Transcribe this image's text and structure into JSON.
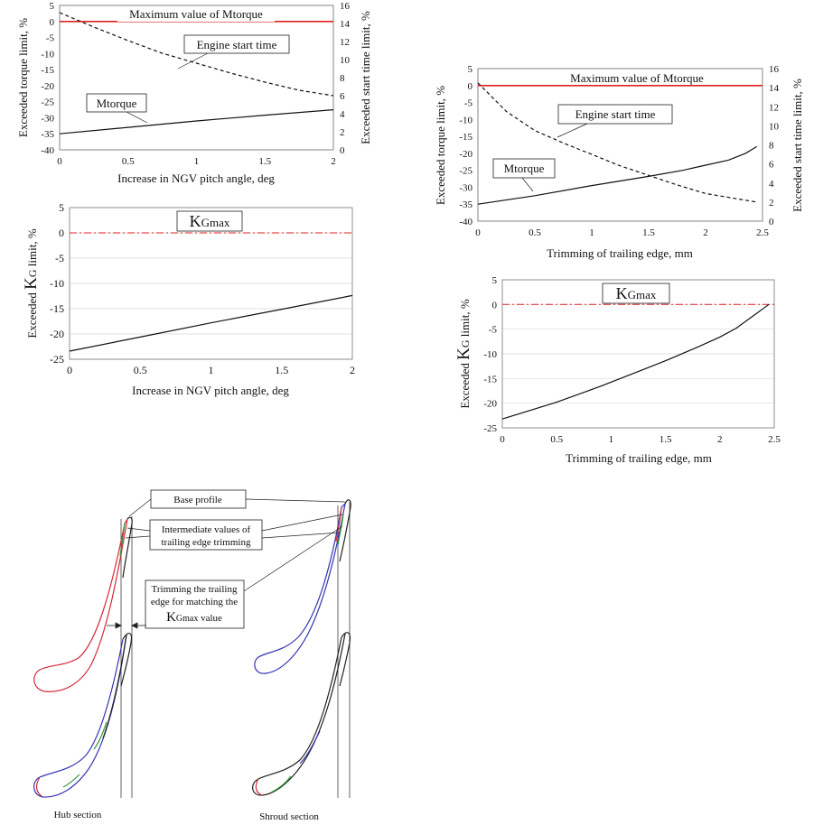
{
  "colors": {
    "limit_line": "#e02020",
    "blade_hub": "#d42a3a",
    "blade_shroud": "#3434b4",
    "blade_base": "#222222",
    "blade_mid_green": "#2e9a3a",
    "text": "#111111",
    "grid": "#d9d9d9"
  },
  "chart_data": [
    {
      "id": "torque_vs_ngv",
      "type": "line",
      "xlabel": "Increase in NGV pitch angle, deg",
      "ylabel": "Exceeded torque limit, %",
      "y2label": "Exceeded start time limit, %",
      "xlim": [
        0,
        2
      ],
      "ylim": [
        -40,
        5
      ],
      "y2lim": [
        0,
        16
      ],
      "xticks": [
        0,
        0.5,
        1,
        1.5,
        2
      ],
      "xtick_labels": [
        "0",
        "0.5",
        "1",
        "1.5",
        "2"
      ],
      "yticks": [
        5,
        0,
        -5,
        -10,
        -15,
        -20,
        -25,
        -30,
        -35,
        -40
      ],
      "ytick_labels": [
        "5",
        "0",
        "-5",
        "-10",
        "-15",
        "-20",
        "-25",
        "-30",
        "-35",
        "-40"
      ],
      "y2ticks": [
        16,
        14,
        12,
        10,
        8,
        6,
        4,
        2,
        0
      ],
      "y2tick_labels": [
        "16",
        "14",
        "12",
        "10",
        "8",
        "6",
        "4",
        "2",
        "0"
      ],
      "grid": false,
      "series": [
        {
          "name": "Maximum value of Mtorque",
          "axis": "left",
          "style": "limit",
          "x": [
            0,
            2
          ],
          "y": [
            0,
            0
          ]
        },
        {
          "name": "Mtorque",
          "axis": "left",
          "style": "solid",
          "x": [
            0,
            0.5,
            1,
            1.5,
            2
          ],
          "y": [
            -35,
            -33,
            -31,
            -29.2,
            -27.5
          ]
        },
        {
          "name": "Engine start time",
          "axis": "right",
          "style": "dashed",
          "x": [
            0,
            0.25,
            0.5,
            0.75,
            1,
            1.25,
            1.5,
            1.75,
            2
          ],
          "y": [
            15.2,
            13.6,
            12.1,
            10.7,
            9.6,
            8.5,
            7.5,
            6.6,
            6.0
          ]
        }
      ]
    },
    {
      "id": "torque_vs_trim",
      "type": "line",
      "xlabel": "Trimming of trailing edge, mm",
      "ylabel": "Exceeded torque limit, %",
      "y2label": "Exceeded start time limit, %",
      "xlim": [
        0,
        2.5
      ],
      "ylim": [
        -40,
        5
      ],
      "y2lim": [
        0,
        16
      ],
      "xticks": [
        0,
        0.5,
        1,
        1.5,
        2,
        2.5
      ],
      "xtick_labels": [
        "0",
        "0.5",
        "1",
        "1.5",
        "2",
        "2.5"
      ],
      "yticks": [
        5,
        0,
        -5,
        -10,
        -15,
        -20,
        -25,
        -30,
        -35,
        -40
      ],
      "ytick_labels": [
        "5",
        "0",
        "-5",
        "-10",
        "-15",
        "-20",
        "-25",
        "-30",
        "-35",
        "-40"
      ],
      "y2ticks": [
        16,
        14,
        12,
        10,
        8,
        6,
        4,
        2,
        0
      ],
      "y2tick_labels": [
        "16",
        "14",
        "12",
        "10",
        "8",
        "6",
        "4",
        "2",
        "0"
      ],
      "grid": false,
      "series": [
        {
          "name": "Maximum value of Mtorque",
          "axis": "left",
          "style": "limit",
          "x": [
            0,
            2.5
          ],
          "y": [
            0,
            0
          ]
        },
        {
          "name": "Mtorque",
          "axis": "left",
          "style": "solid",
          "x": [
            0,
            0.5,
            1,
            1.5,
            1.8,
            2,
            2.2,
            2.35,
            2.45
          ],
          "y": [
            -35,
            -32.5,
            -29.5,
            -26.8,
            -25,
            -23.5,
            -22,
            -20,
            -18
          ]
        },
        {
          "name": "Engine start time",
          "axis": "right",
          "style": "dashed",
          "x": [
            0,
            0.25,
            0.5,
            0.75,
            1,
            1.25,
            1.5,
            1.75,
            2,
            2.25,
            2.45
          ],
          "y": [
            14.5,
            11.5,
            9.5,
            8.2,
            7,
            5.8,
            4.8,
            3.8,
            2.9,
            2.4,
            2.0
          ]
        }
      ]
    },
    {
      "id": "kg_vs_ngv",
      "type": "line",
      "xlabel": "Increase in NGV pitch angle, deg",
      "ylabel_prefix": "Exceeded ",
      "ylabel_big": "K",
      "ylabel_sub": "G",
      "ylabel_suffix": " limit, %",
      "box_label_big": "K",
      "box_label_small": "Gmax",
      "xlim": [
        0,
        2
      ],
      "ylim": [
        -25,
        5
      ],
      "xticks": [
        0,
        0.5,
        1,
        1.5,
        2
      ],
      "xtick_labels": [
        "0",
        "0.5",
        "1",
        "1.5",
        "2"
      ],
      "yticks": [
        5,
        0,
        -5,
        -10,
        -15,
        -20,
        -25
      ],
      "ytick_labels": [
        "5",
        "0",
        "-5",
        "-10",
        "-15",
        "-20",
        "-25"
      ],
      "grid": true,
      "series": [
        {
          "name": "KGmax",
          "style": "dashdot",
          "x": [
            0,
            2
          ],
          "y": [
            0,
            0
          ]
        },
        {
          "name": "KG",
          "style": "solid",
          "x": [
            0,
            0.5,
            1,
            1.5,
            2
          ],
          "y": [
            -23.4,
            -20.6,
            -17.8,
            -15.1,
            -12.4
          ]
        }
      ]
    },
    {
      "id": "kg_vs_trim",
      "type": "line",
      "xlabel": "Trimming of trailing edge, mm",
      "ylabel_prefix": "Exceeded ",
      "ylabel_big": "K",
      "ylabel_sub": "G",
      "ylabel_suffix": " limit, %",
      "box_label_big": "K",
      "box_label_small": "Gmax",
      "xlim": [
        0,
        2.5
      ],
      "ylim": [
        -25,
        5
      ],
      "xticks": [
        0,
        0.5,
        1,
        1.5,
        2,
        2.5
      ],
      "xtick_labels": [
        "0",
        "0.5",
        "1",
        "1.5",
        "2",
        "2.5"
      ],
      "yticks": [
        5,
        0,
        -5,
        -10,
        -15,
        -20,
        -25
      ],
      "ytick_labels": [
        "5",
        "0",
        "-5",
        "-10",
        "-15",
        "-20",
        "-25"
      ],
      "grid": true,
      "series": [
        {
          "name": "KGmax",
          "style": "dashdot",
          "x": [
            0,
            2.5
          ],
          "y": [
            0,
            0
          ]
        },
        {
          "name": "KG",
          "style": "solid",
          "x": [
            0,
            0.5,
            0.9,
            1.2,
            1.5,
            1.8,
            2.0,
            2.15,
            2.3,
            2.4,
            2.45
          ],
          "y": [
            -23.2,
            -19.8,
            -16.6,
            -14,
            -11.4,
            -8.6,
            -6.6,
            -4.8,
            -2.4,
            -0.8,
            0
          ]
        }
      ]
    }
  ],
  "diagram": {
    "labels": {
      "base_profile": "Base profile",
      "intermediate_1": "Intermediate values of",
      "intermediate_2": "trailing edge trimming",
      "trimming_1": "Trimming the trailing",
      "trimming_2": "edge for matching the",
      "trimming_3_big": "K",
      "trimming_3_small": "Gmax",
      "trimming_3_suffix": " value",
      "hub_section": "Hub section",
      "shroud_section": "Shroud section"
    }
  }
}
